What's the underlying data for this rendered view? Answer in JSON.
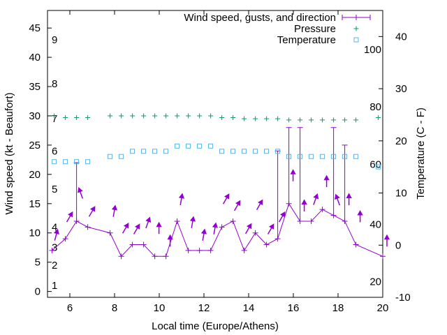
{
  "chart_data": {
    "type": "line",
    "xlabel": "Local time (Europe/Athens)",
    "ylabel": "Wind speed (kt - Beaufort)",
    "y2label": "Temperature (C - F)",
    "xlim": [
      5,
      20
    ],
    "ylim": [
      -1,
      48
    ],
    "y2lim": [
      -10,
      45
    ],
    "xticks": [
      6,
      8,
      10,
      12,
      14,
      16,
      18,
      20
    ],
    "yticks": [
      0,
      5,
      10,
      15,
      20,
      25,
      30,
      35,
      40,
      45
    ],
    "y2ticks": [
      -10,
      0,
      10,
      20,
      30,
      40
    ],
    "beaufort_labels": [
      {
        "text": "1",
        "y": 1
      },
      {
        "text": "2",
        "y": 4.5
      },
      {
        "text": "3",
        "y": 7.5
      },
      {
        "text": "4",
        "y": 11
      },
      {
        "text": "5",
        "y": 17.5
      },
      {
        "text": "6",
        "y": 24
      },
      {
        "text": "7",
        "y": 29.5
      },
      {
        "text": "8",
        "y": 35.5
      },
      {
        "text": "9",
        "y": 43
      }
    ],
    "fahrenheit_labels": [
      {
        "text": "20",
        "y2": -7
      },
      {
        "text": "40",
        "y2": 4
      },
      {
        "text": "60",
        "y2": 15.5
      },
      {
        "text": "80",
        "y2": 26.5
      },
      {
        "text": "100",
        "y2": 37.5
      }
    ],
    "legend": {
      "position": "top-right",
      "entries": [
        "Wind speed, gusts, and direction",
        "Pressure",
        "Temperature"
      ]
    },
    "series": [
      {
        "name": "Wind speed, gusts, and direction",
        "color": "#9400d3",
        "points": [
          {
            "x": 5.2,
            "y": 7,
            "gust": 7,
            "dir": 75
          },
          {
            "x": 5.8,
            "y": 9,
            "gust": 9,
            "dir": 60
          },
          {
            "x": 6.3,
            "y": 12,
            "gust": 22,
            "dir": 110
          },
          {
            "x": 6.8,
            "y": 11,
            "gust": 11,
            "dir": 60
          },
          {
            "x": 7.8,
            "y": 10,
            "gust": 10,
            "dir": 80
          },
          {
            "x": 8.3,
            "y": 6,
            "gust": 6,
            "dir": 60
          },
          {
            "x": 8.8,
            "y": 8,
            "gust": 8,
            "dir": 60
          },
          {
            "x": 9.3,
            "y": 8,
            "gust": 8,
            "dir": 70
          },
          {
            "x": 9.8,
            "y": 6,
            "gust": 6,
            "dir": 90
          },
          {
            "x": 10.3,
            "y": 6,
            "gust": 6,
            "dir": 90
          },
          {
            "x": 10.8,
            "y": 12,
            "gust": 12,
            "dir": 80
          },
          {
            "x": 11.3,
            "y": 7,
            "gust": 7,
            "dir": 80
          },
          {
            "x": 11.8,
            "y": 7,
            "gust": 7,
            "dir": 80
          },
          {
            "x": 12.3,
            "y": 7,
            "gust": 7,
            "dir": 80
          },
          {
            "x": 12.8,
            "y": 11,
            "gust": 11,
            "dir": 60
          },
          {
            "x": 13.3,
            "y": 12,
            "gust": 12,
            "dir": 60
          },
          {
            "x": 13.8,
            "y": 7,
            "gust": 7,
            "dir": 60
          },
          {
            "x": 14.3,
            "y": 10,
            "gust": 10,
            "dir": 60
          },
          {
            "x": 14.8,
            "y": 8,
            "gust": 8,
            "dir": 60
          },
          {
            "x": 15.3,
            "y": 9,
            "gust": 24,
            "dir": 60
          },
          {
            "x": 15.8,
            "y": 15,
            "gust": 28,
            "dir": 90
          },
          {
            "x": 16.3,
            "y": 12,
            "gust": 28,
            "dir": 90
          },
          {
            "x": 16.8,
            "y": 12,
            "gust": 12,
            "dir": 70
          },
          {
            "x": 17.3,
            "y": 14,
            "gust": 14,
            "dir": 90
          },
          {
            "x": 17.8,
            "y": 13,
            "gust": 28,
            "dir": 110
          },
          {
            "x": 18.3,
            "y": 12,
            "gust": 25,
            "dir": 90
          },
          {
            "x": 18.8,
            "y": 8,
            "gust": 8,
            "dir": 90
          },
          {
            "x": 20,
            "y": 6,
            "gust": 6,
            "dir": 90
          }
        ]
      },
      {
        "name": "Pressure",
        "axis": "y",
        "color": "#009e73",
        "x": [
          5.3,
          5.8,
          6.3,
          6.8,
          7.8,
          8.3,
          8.8,
          9.3,
          9.8,
          10.3,
          10.8,
          11.3,
          11.8,
          12.3,
          12.8,
          13.3,
          13.8,
          14.3,
          14.8,
          15.3,
          15.8,
          16.3,
          16.8,
          17.3,
          17.8,
          18.3,
          18.8,
          19.8
        ],
        "y": [
          30,
          29.7,
          29.7,
          29.7,
          30,
          30,
          30,
          30,
          30,
          30,
          30,
          30,
          30,
          30,
          29.7,
          29.7,
          29.5,
          29.5,
          29.5,
          29.5,
          29.3,
          29.3,
          29.3,
          29.3,
          29.3,
          29.3,
          29.3,
          29.7
        ]
      },
      {
        "name": "Temperature",
        "axis": "y2",
        "color": "#56b4e9",
        "x": [
          5.3,
          5.8,
          6.3,
          6.8,
          7.8,
          8.3,
          8.8,
          9.3,
          9.8,
          10.3,
          10.8,
          11.3,
          11.8,
          12.3,
          12.8,
          13.3,
          13.8,
          14.3,
          14.8,
          15.3,
          15.8,
          16.3,
          16.8,
          17.3,
          17.8,
          18.3,
          18.8,
          19.8
        ],
        "y": [
          16,
          16,
          16,
          16,
          17,
          17,
          18,
          18,
          18,
          18,
          19,
          19,
          19,
          19,
          18,
          18,
          18,
          18,
          18,
          18,
          17,
          17,
          17,
          17,
          17,
          17,
          17,
          15
        ]
      }
    ]
  }
}
